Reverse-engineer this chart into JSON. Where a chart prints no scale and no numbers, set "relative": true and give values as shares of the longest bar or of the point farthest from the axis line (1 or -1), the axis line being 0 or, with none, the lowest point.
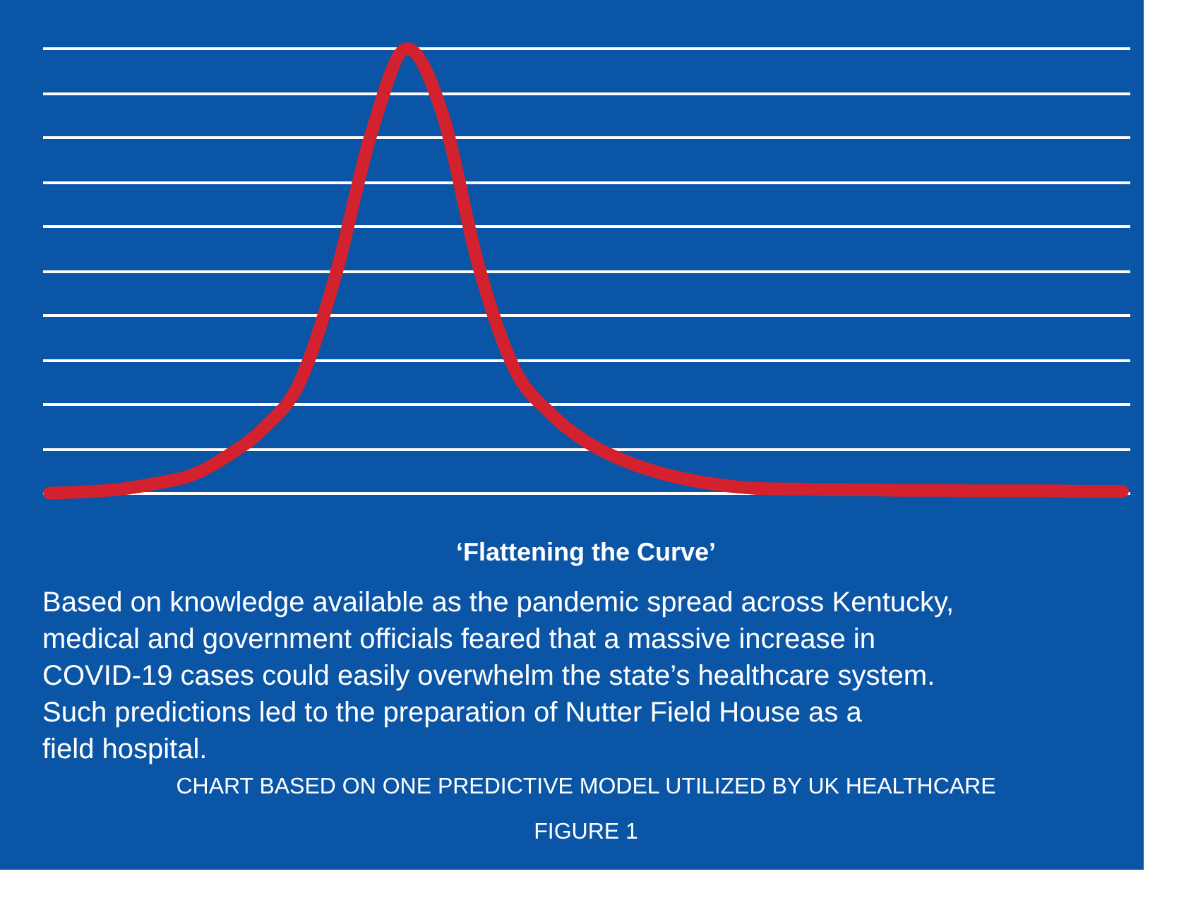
{
  "chart_data": {
    "type": "line",
    "relative": true,
    "grid": "y",
    "line_style": "solid",
    "title": "‘Flattening the Curve’",
    "categories": [
      null,
      null,
      null,
      null,
      null,
      null,
      null,
      null,
      null,
      null,
      null,
      null,
      null,
      null,
      null,
      null,
      null,
      null,
      null,
      null,
      null,
      null,
      null,
      null,
      null,
      null,
      null,
      null,
      null,
      null,
      null
    ],
    "series": [
      {
        "color": "#d3222e",
        "values": [
          0,
          0.003,
          0.009,
          0.022,
          0.041,
          0.085,
          0.147,
          0.25,
          0.49,
          0.81,
          1.0,
          0.85,
          0.51,
          0.28,
          0.18,
          0.116,
          0.075,
          0.047,
          0.028,
          0.016,
          0.01,
          0.009,
          0.008,
          0.007,
          0.006,
          0.006,
          0.005,
          0.005,
          0.005,
          0.004,
          0.004
        ]
      }
    ],
    "annotations": [
      "Based on knowledge available as the pandemic spread across Kentucky, medical and government officials feared that a massive increase in COVID-19 cases could easily overwhelm the state’s healthcare system. Such predictions led to the preparation of Nutter Field House as a field hospital.",
      "CHART BASED ON ONE PREDICTIVE MODEL UTILIZED BY UK HEALTHCARE",
      "FIGURE 1"
    ]
  }
}
